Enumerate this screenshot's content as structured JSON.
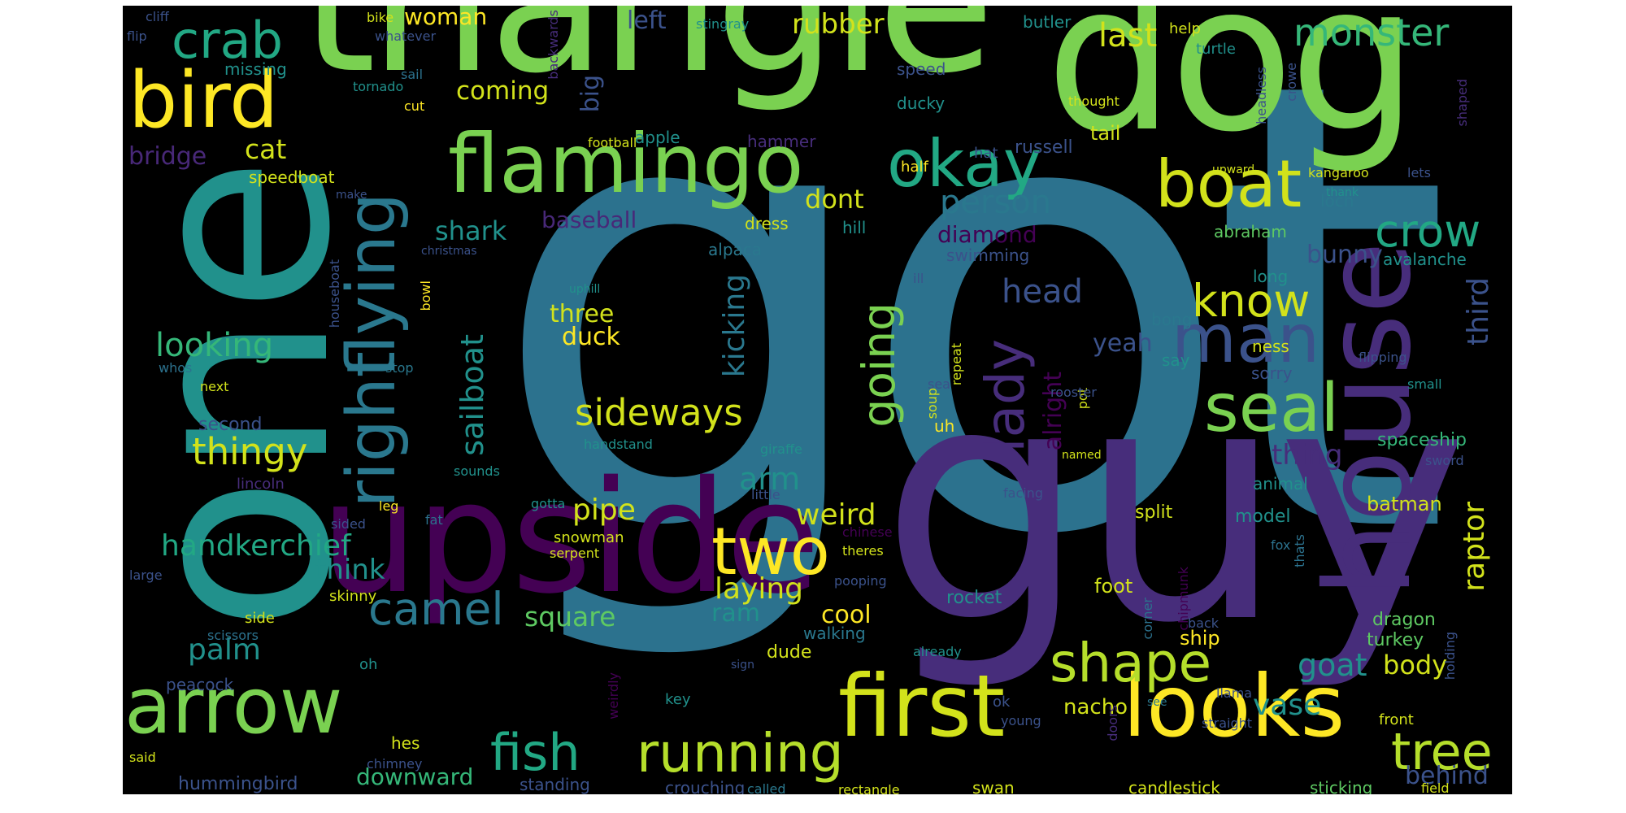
{
  "background": "#000000",
  "palette": [
    "#440154",
    "#472d7b",
    "#3b528b",
    "#2c728e",
    "#21918c",
    "#28ae80",
    "#5ec962",
    "#addc30",
    "#fde725"
  ],
  "words": [
    {
      "text": "got",
      "color": "#2c728e"
    },
    {
      "text": "one",
      "color": "#21918c"
    },
    {
      "text": "guy",
      "color": "#472d7b"
    },
    {
      "text": "triangle",
      "color": "#7ad151"
    },
    {
      "text": "dog",
      "color": "#7ad151"
    },
    {
      "text": "house",
      "color": "#472d7b"
    },
    {
      "text": "upside",
      "color": "#440154"
    },
    {
      "text": "first",
      "color": "#d2e21b"
    },
    {
      "text": "looks",
      "color": "#fde725"
    },
    {
      "text": "flamingo",
      "color": "#7ad151"
    },
    {
      "text": "arrow",
      "color": "#7ad151"
    },
    {
      "text": "bird",
      "color": "#fde725"
    },
    {
      "text": "crab",
      "color": "#22a884"
    },
    {
      "text": "boat",
      "color": "#d2e21b"
    },
    {
      "text": "okay",
      "color": "#22a884"
    },
    {
      "text": "man",
      "color": "#3b528b"
    },
    {
      "text": "seal",
      "color": "#7ad151"
    },
    {
      "text": "flying",
      "color": "#2a788e"
    },
    {
      "text": "right",
      "color": "#2a788e"
    },
    {
      "text": "two",
      "color": "#fde725"
    },
    {
      "text": "running",
      "color": "#b5de2b"
    },
    {
      "text": "shape",
      "color": "#b5de2b"
    },
    {
      "text": "fish",
      "color": "#22a884"
    },
    {
      "text": "tree",
      "color": "#b5de2b"
    },
    {
      "text": "lady",
      "color": "#472d7b"
    },
    {
      "text": "crow",
      "color": "#22a884"
    },
    {
      "text": "know",
      "color": "#d2e21b"
    },
    {
      "text": "monster",
      "color": "#35b779"
    },
    {
      "text": "camel",
      "color": "#2a788e"
    },
    {
      "text": "going",
      "color": "#7ad151"
    },
    {
      "text": "sideways",
      "color": "#d2e21b"
    },
    {
      "text": "thingy",
      "color": "#d2e21b"
    },
    {
      "text": "handkerchief",
      "color": "#22a884"
    },
    {
      "text": "sailboat",
      "color": "#21918c"
    },
    {
      "text": "person",
      "color": "#2a788e"
    },
    {
      "text": "looking",
      "color": "#35b779"
    },
    {
      "text": "head",
      "color": "#3b528b"
    },
    {
      "text": "last",
      "color": "#d2e21b"
    },
    {
      "text": "shark",
      "color": "#21918c"
    },
    {
      "text": "kicking",
      "color": "#2a788e"
    },
    {
      "text": "pipe",
      "color": "#d2e21b"
    },
    {
      "text": "weird",
      "color": "#d2e21b"
    },
    {
      "text": "square",
      "color": "#5ec962"
    },
    {
      "text": "laying",
      "color": "#d2e21b"
    },
    {
      "text": "raptor",
      "color": "#d2e21b"
    },
    {
      "text": "third",
      "color": "#3b528b"
    },
    {
      "text": "yeah",
      "color": "#3b528b"
    },
    {
      "text": "bunny",
      "color": "#3b528b"
    },
    {
      "text": "dont",
      "color": "#d2e21b"
    },
    {
      "text": "cat",
      "color": "#d2e21b"
    },
    {
      "text": "rubber",
      "color": "#d2e21b"
    },
    {
      "text": "coming",
      "color": "#d2e21b"
    },
    {
      "text": "woman",
      "color": "#fde725"
    },
    {
      "text": "left",
      "color": "#3b528b"
    },
    {
      "text": "big",
      "color": "#3b528b"
    },
    {
      "text": "baseball",
      "color": "#482878"
    },
    {
      "text": "diamond",
      "color": "#440154"
    },
    {
      "text": "bridge",
      "color": "#482878"
    },
    {
      "text": "thing",
      "color": "#472d7b"
    },
    {
      "text": "alright",
      "color": "#440154"
    },
    {
      "text": "three",
      "color": "#d2e21b"
    },
    {
      "text": "duck",
      "color": "#fde725"
    },
    {
      "text": "arm",
      "color": "#21918c"
    },
    {
      "text": "think",
      "color": "#21918c"
    },
    {
      "text": "palm",
      "color": "#21918c"
    },
    {
      "text": "goat",
      "color": "#21918c"
    },
    {
      "text": "vase",
      "color": "#21918c"
    },
    {
      "text": "body",
      "color": "#d2e21b"
    },
    {
      "text": "behind",
      "color": "#3b528b"
    },
    {
      "text": "downward",
      "color": "#35b779"
    },
    {
      "text": "cool",
      "color": "#fde725"
    },
    {
      "text": "ram",
      "color": "#21918c"
    },
    {
      "text": "nacho",
      "color": "#d2e21b"
    },
    {
      "text": "batman",
      "color": "#d2e21b"
    },
    {
      "text": "foot",
      "color": "#d2e21b"
    },
    {
      "text": "speedboat",
      "color": "#d2e21b"
    },
    {
      "text": "hummingbird",
      "color": "#3b528b"
    },
    {
      "text": "standing",
      "color": "#3b528b"
    },
    {
      "text": "crouching",
      "color": "#3b528b"
    },
    {
      "text": "sticking",
      "color": "#5ec962"
    },
    {
      "text": "candlestick",
      "color": "#d2e21b"
    },
    {
      "text": "swan",
      "color": "#d2e21b"
    },
    {
      "text": "ship",
      "color": "#fde725"
    },
    {
      "text": "dragon",
      "color": "#5ec962"
    },
    {
      "text": "turkey",
      "color": "#5ec962"
    },
    {
      "text": "model",
      "color": "#21918c"
    },
    {
      "text": "split",
      "color": "#d2e21b"
    },
    {
      "text": "rocket",
      "color": "#21918c"
    },
    {
      "text": "dude",
      "color": "#d2e21b"
    },
    {
      "text": "walking",
      "color": "#2a788e"
    },
    {
      "text": "spaceship",
      "color": "#35b779"
    },
    {
      "text": "avalanche",
      "color": "#21918c"
    },
    {
      "text": "abraham",
      "color": "#5ec962"
    },
    {
      "text": "loch",
      "color": "#2a788e"
    },
    {
      "text": "long",
      "color": "#21918c"
    },
    {
      "text": "bong",
      "color": "#2a788e"
    },
    {
      "text": "ness",
      "color": "#d2e21b"
    },
    {
      "text": "say",
      "color": "#21918c"
    },
    {
      "text": "sorry",
      "color": "#3b528b"
    },
    {
      "text": "uh",
      "color": "#fde725"
    },
    {
      "text": "second",
      "color": "#3b528b"
    },
    {
      "text": "dress",
      "color": "#d2e21b"
    },
    {
      "text": "alpaca",
      "color": "#2a788e"
    },
    {
      "text": "swimming",
      "color": "#3b528b"
    },
    {
      "text": "hill",
      "color": "#21918c"
    },
    {
      "text": "speed",
      "color": "#3b528b"
    },
    {
      "text": "ducky",
      "color": "#21918c"
    },
    {
      "text": "apple",
      "color": "#21918c"
    },
    {
      "text": "hammer",
      "color": "#472d7b"
    },
    {
      "text": "half",
      "color": "#fde725"
    },
    {
      "text": "hat",
      "color": "#3b528b"
    },
    {
      "text": "russell",
      "color": "#3b528b"
    },
    {
      "text": "tail",
      "color": "#d2e21b"
    },
    {
      "text": "missing",
      "color": "#21918c"
    },
    {
      "text": "stingray",
      "color": "#21918c"
    },
    {
      "text": "butler",
      "color": "#21918c"
    },
    {
      "text": "help",
      "color": "#d2e21b"
    },
    {
      "text": "turtle",
      "color": "#21918c"
    },
    {
      "text": "thought",
      "color": "#d2e21b"
    },
    {
      "text": "headless",
      "color": "#3b528b"
    },
    {
      "text": "crowe",
      "color": "#3b528b"
    },
    {
      "text": "shaped",
      "color": "#472d7b"
    },
    {
      "text": "lets",
      "color": "#3b528b"
    },
    {
      "text": "kangaroo",
      "color": "#d2e21b"
    },
    {
      "text": "thank",
      "color": "#21918c"
    },
    {
      "text": "upward",
      "color": "#d2e21b"
    },
    {
      "text": "football",
      "color": "#d2e21b"
    },
    {
      "text": "sail",
      "color": "#2c728e"
    },
    {
      "text": "cut",
      "color": "#fde725"
    },
    {
      "text": "tornado",
      "color": "#21918c"
    },
    {
      "text": "whatever",
      "color": "#3b528b"
    },
    {
      "text": "flip",
      "color": "#3b528b"
    },
    {
      "text": "cliff",
      "color": "#3b528b"
    },
    {
      "text": "bike",
      "color": "#d2e21b"
    },
    {
      "text": "backwards",
      "color": "#472d7b"
    },
    {
      "text": "make",
      "color": "#3b528b"
    },
    {
      "text": "christmas",
      "color": "#3b528b"
    },
    {
      "text": "houseboat",
      "color": "#3b528b"
    },
    {
      "text": "bowl",
      "color": "#fde725"
    },
    {
      "text": "stop",
      "color": "#2a788e"
    },
    {
      "text": "whos",
      "color": "#2c728e"
    },
    {
      "text": "next",
      "color": "#d2e21b"
    },
    {
      "text": "uphill",
      "color": "#21918c"
    },
    {
      "text": "ill",
      "color": "#3b528b"
    },
    {
      "text": "soup",
      "color": "#d2e21b"
    },
    {
      "text": "repeat",
      "color": "#d2e21b"
    },
    {
      "text": "giraffe",
      "color": "#21918c"
    },
    {
      "text": "little",
      "color": "#3b528b"
    },
    {
      "text": "handstand",
      "color": "#21918c"
    },
    {
      "text": "sounds",
      "color": "#21918c"
    },
    {
      "text": "lincoln",
      "color": "#472d7b"
    },
    {
      "text": "sided",
      "color": "#3b528b"
    },
    {
      "text": "leg",
      "color": "#fde725"
    },
    {
      "text": "fat",
      "color": "#2c728e"
    },
    {
      "text": "gotta",
      "color": "#21918c"
    },
    {
      "text": "snowman",
      "color": "#d2e21b"
    },
    {
      "text": "serpent",
      "color": "#d2e21b"
    },
    {
      "text": "large",
      "color": "#3b528b"
    },
    {
      "text": "skinny",
      "color": "#d2e21b"
    },
    {
      "text": "side",
      "color": "#d2e21b"
    },
    {
      "text": "scissors",
      "color": "#2c728e"
    },
    {
      "text": "peacock",
      "color": "#3b528b"
    },
    {
      "text": "oh",
      "color": "#21918c"
    },
    {
      "text": "hes",
      "color": "#d2e21b"
    },
    {
      "text": "chimney",
      "color": "#3b528b"
    },
    {
      "text": "said",
      "color": "#d2e21b"
    },
    {
      "text": "weirdly",
      "color": "#440154"
    },
    {
      "text": "key",
      "color": "#21918c"
    },
    {
      "text": "sign",
      "color": "#3b528b"
    },
    {
      "text": "called",
      "color": "#2a788e"
    },
    {
      "text": "rectangle",
      "color": "#d2e21b"
    },
    {
      "text": "already",
      "color": "#21918c"
    },
    {
      "text": "ok",
      "color": "#3b528b"
    },
    {
      "text": "young",
      "color": "#3b528b"
    },
    {
      "text": "doors",
      "color": "#472d7b"
    },
    {
      "text": "see",
      "color": "#2a788e"
    },
    {
      "text": "llama",
      "color": "#3b528b"
    },
    {
      "text": "straight",
      "color": "#3b528b"
    },
    {
      "text": "front",
      "color": "#d2e21b"
    },
    {
      "text": "holding",
      "color": "#3b528b"
    },
    {
      "text": "field",
      "color": "#d2e21b"
    },
    {
      "text": "corner",
      "color": "#2c728e"
    },
    {
      "text": "chipmunk",
      "color": "#440154"
    },
    {
      "text": "back",
      "color": "#3b528b"
    },
    {
      "text": "fox",
      "color": "#2c728e"
    },
    {
      "text": "thats",
      "color": "#2c728e"
    },
    {
      "text": "pooping",
      "color": "#3b528b"
    },
    {
      "text": "chinese",
      "color": "#440154"
    },
    {
      "text": "theres",
      "color": "#d2e21b"
    },
    {
      "text": "facing",
      "color": "#3b528b"
    },
    {
      "text": "named",
      "color": "#d2e21b"
    },
    {
      "text": "pot",
      "color": "#d2e21b"
    },
    {
      "text": "rooster",
      "color": "#3b528b"
    },
    {
      "text": "sea",
      "color": "#3b528b"
    },
    {
      "text": "sword",
      "color": "#3b528b"
    },
    {
      "text": "animal",
      "color": "#21918c"
    },
    {
      "text": "small",
      "color": "#21918c"
    },
    {
      "text": "flipping",
      "color": "#3b528b"
    }
  ]
}
